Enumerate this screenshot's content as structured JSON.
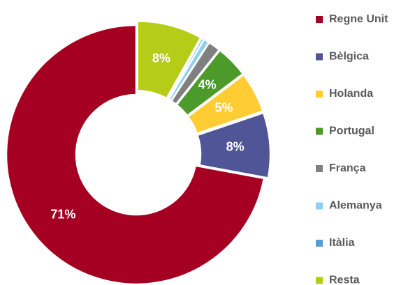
{
  "chart_data": {
    "type": "donut",
    "categories": [
      "Regne Unit",
      "Bèlgica",
      "Holanda",
      "Portugal",
      "França",
      "Alemanya",
      "Itàlia",
      "Resta"
    ],
    "values": [
      71,
      8,
      5,
      4,
      1.5,
      0.7,
      0.3,
      8
    ],
    "value_labels": [
      "71%",
      "8%",
      "5%",
      "4%",
      null,
      null,
      null,
      "8%"
    ],
    "colors": [
      "#a50021",
      "#4f5597",
      "#ffcc33",
      "#4b9a2a",
      "#808080",
      "#8fd0f0",
      "#5b9bd5",
      "#b5cc18"
    ],
    "legend": "right"
  }
}
